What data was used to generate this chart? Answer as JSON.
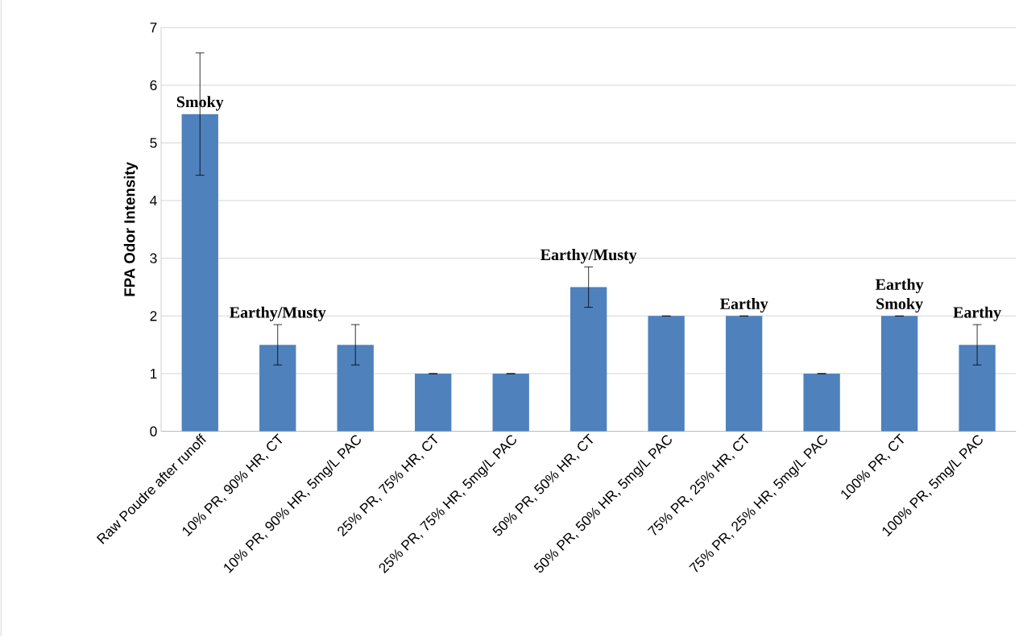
{
  "chart_data": {
    "type": "bar",
    "ylabel": "FPA Odor Intensity",
    "categories": [
      "Raw Poudre after runoff",
      "10% PR, 90% HR, CT",
      "10% PR, 90% HR, 5mg/L PAC",
      "25% PR, 75% HR, CT",
      "25% PR, 75% HR, 5mg/L PAC",
      "50% PR, 50% HR, CT",
      "50% PR, 50% HR, 5mg/L PAC",
      "75% PR, 25% HR, CT",
      "75% PR, 25% HR, 5mg/L PAC",
      "100% PR, CT",
      "100% PR, 5mg/L PAC"
    ],
    "values": [
      5.5,
      1.5,
      1.5,
      1,
      1,
      2.5,
      2,
      2,
      1,
      2,
      1.5
    ],
    "errors": [
      1.06,
      0.35,
      0.35,
      0,
      0,
      0.35,
      0,
      0,
      0,
      0,
      0.35
    ],
    "color": "#4f81bd",
    "ylim": [
      0,
      7
    ],
    "yticks": [
      0,
      1,
      2,
      3,
      4,
      5,
      6,
      7
    ],
    "grid": "y",
    "annotations": [
      {
        "text": "Smoky",
        "x": "Raw Poudre after runoff",
        "y": 5.5
      },
      {
        "text": "Earthy/Musty",
        "x": "10% PR, 90% HR, CT",
        "y": 1.85
      },
      {
        "text": "Earthy/Musty",
        "x": "50% PR, 50% HR, CT",
        "y": 2.85
      },
      {
        "text": "Earthy",
        "x": "75% PR, 25% HR, CT",
        "y": 2
      },
      {
        "text": "Earthy",
        "x": "100% PR, CT",
        "y": 2
      },
      {
        "text": "Smoky",
        "x": "100% PR, CT",
        "y": 2
      },
      {
        "text": "Earthy",
        "x": "100% PR, 5mg/L PAC",
        "y": 1.85
      }
    ]
  }
}
